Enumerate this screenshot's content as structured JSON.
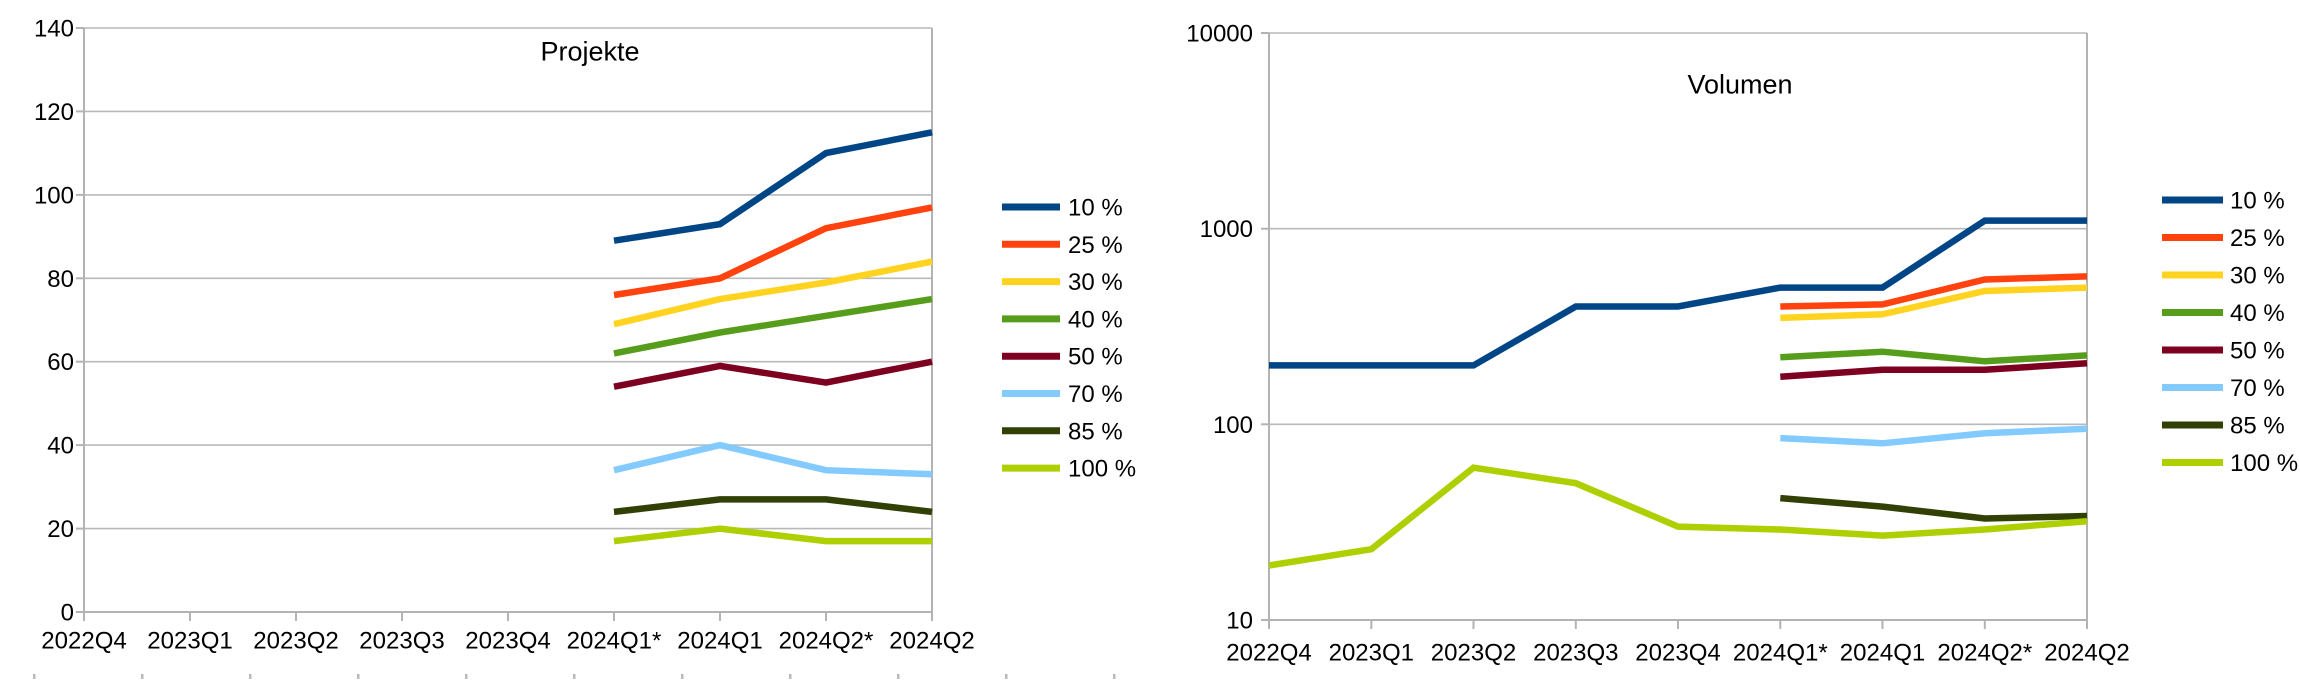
{
  "page": {
    "background": "#ffffff",
    "text_color": "#000000",
    "grid_color": "#b9b9b9",
    "axis_color": "#b3b3b3"
  },
  "chart_data": [
    {
      "type": "line",
      "title": "Projekte",
      "legend_position": "right",
      "grid": true,
      "y_axis": {
        "scale": "linear",
        "min": 0,
        "max": 140,
        "ticks": [
          0,
          20,
          40,
          60,
          80,
          100,
          120,
          140
        ]
      },
      "categories": [
        "2022Q4",
        "2023Q1",
        "2023Q2",
        "2023Q3",
        "2023Q4",
        "2024Q1*",
        "2024Q1",
        "2024Q2*",
        "2024Q2"
      ],
      "series": [
        {
          "name": "10 %",
          "color": "#004586",
          "values": [
            null,
            null,
            null,
            null,
            null,
            89,
            93,
            110,
            115
          ]
        },
        {
          "name": "25 %",
          "color": "#FF420E",
          "values": [
            null,
            null,
            null,
            null,
            null,
            76,
            80,
            92,
            97
          ]
        },
        {
          "name": "30 %",
          "color": "#FFD320",
          "values": [
            null,
            null,
            null,
            null,
            null,
            69,
            75,
            79,
            84
          ]
        },
        {
          "name": "40 %",
          "color": "#579D1C",
          "values": [
            null,
            null,
            null,
            null,
            null,
            62,
            67,
            71,
            75
          ]
        },
        {
          "name": "50 %",
          "color": "#7E0021",
          "values": [
            null,
            null,
            null,
            null,
            null,
            54,
            59,
            55,
            60
          ]
        },
        {
          "name": "70 %",
          "color": "#83CAFF",
          "values": [
            null,
            null,
            null,
            null,
            null,
            34,
            40,
            34,
            33
          ]
        },
        {
          "name": "85 %",
          "color": "#314004",
          "values": [
            null,
            null,
            null,
            null,
            null,
            24,
            27,
            27,
            24
          ]
        },
        {
          "name": "100 %",
          "color": "#AECF00",
          "values": [
            null,
            null,
            null,
            null,
            null,
            17,
            20,
            17,
            17
          ]
        }
      ]
    },
    {
      "type": "line",
      "title": "Volumen",
      "legend_position": "right",
      "grid": true,
      "y_axis": {
        "scale": "log",
        "min": 10,
        "max": 10000,
        "ticks": [
          10,
          100,
          1000,
          10000
        ]
      },
      "categories": [
        "2022Q4",
        "2023Q1",
        "2023Q2",
        "2023Q3",
        "2023Q4",
        "2024Q1*",
        "2024Q1",
        "2024Q2*",
        "2024Q2"
      ],
      "series": [
        {
          "name": "10 %",
          "color": "#004586",
          "values": [
            200,
            200,
            200,
            400,
            400,
            500,
            500,
            1100,
            1100
          ]
        },
        {
          "name": "25 %",
          "color": "#FF420E",
          "values": [
            null,
            null,
            null,
            null,
            null,
            400,
            410,
            550,
            570
          ]
        },
        {
          "name": "30 %",
          "color": "#FFD320",
          "values": [
            null,
            null,
            null,
            null,
            null,
            350,
            365,
            480,
            500
          ]
        },
        {
          "name": "40 %",
          "color": "#579D1C",
          "values": [
            null,
            null,
            null,
            null,
            null,
            220,
            235,
            210,
            225
          ]
        },
        {
          "name": "50 %",
          "color": "#7E0021",
          "values": [
            null,
            null,
            null,
            null,
            null,
            175,
            190,
            190,
            205
          ]
        },
        {
          "name": "70 %",
          "color": "#83CAFF",
          "values": [
            null,
            null,
            null,
            null,
            null,
            85,
            80,
            90,
            95
          ]
        },
        {
          "name": "85 %",
          "color": "#314004",
          "values": [
            null,
            null,
            null,
            null,
            null,
            42,
            38,
            33,
            34
          ]
        },
        {
          "name": "100 %",
          "color": "#AECF00",
          "values": [
            19,
            23,
            60,
            50,
            30,
            29,
            27,
            29,
            32
          ]
        }
      ]
    }
  ]
}
